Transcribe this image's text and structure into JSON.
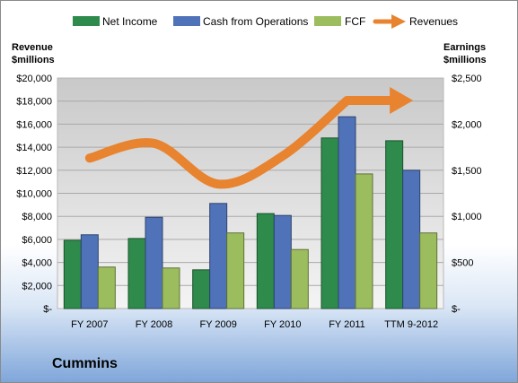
{
  "chart_data": {
    "type": "bar",
    "categories": [
      "FY 2007",
      "FY 2008",
      "FY 2009",
      "FY 2010",
      "FY 2011",
      "TTM 9-2012"
    ],
    "series": [
      {
        "name": "Net Income",
        "axis": "right",
        "color": "#2e8b4c",
        "values": [
          740,
          760,
          420,
          1030,
          1850,
          1820
        ]
      },
      {
        "name": "Cash from Operations",
        "axis": "right",
        "color": "#4f72b8",
        "values": [
          800,
          990,
          1140,
          1010,
          2080,
          1500
        ]
      },
      {
        "name": "FCF",
        "axis": "right",
        "color": "#9cbd5e",
        "values": [
          450,
          440,
          820,
          640,
          1460,
          820
        ]
      },
      {
        "name": "Revenues",
        "axis": "left",
        "type": "line",
        "color": "#e8832f",
        "values": [
          13050,
          14340,
          10800,
          13230,
          18050,
          18050
        ]
      }
    ],
    "left_axis": {
      "title_lines": [
        "Revenue",
        "$millions"
      ],
      "ylim": [
        0,
        20000
      ],
      "tick_labels": [
        "$-",
        "$2,000",
        "$4,000",
        "$6,000",
        "$8,000",
        "$10,000",
        "$12,000",
        "$14,000",
        "$16,000",
        "$18,000",
        "$20,000"
      ]
    },
    "right_axis": {
      "title_lines": [
        "Earnings",
        "$millions"
      ],
      "ylim": [
        0,
        2500
      ],
      "tick_labels": [
        "$-",
        "$500",
        "$1,000",
        "$1,500",
        "$2,000",
        "$2,500"
      ]
    },
    "grid": true,
    "legend": "top",
    "plot_background": "#dcdcdc"
  },
  "company": "Cummins"
}
